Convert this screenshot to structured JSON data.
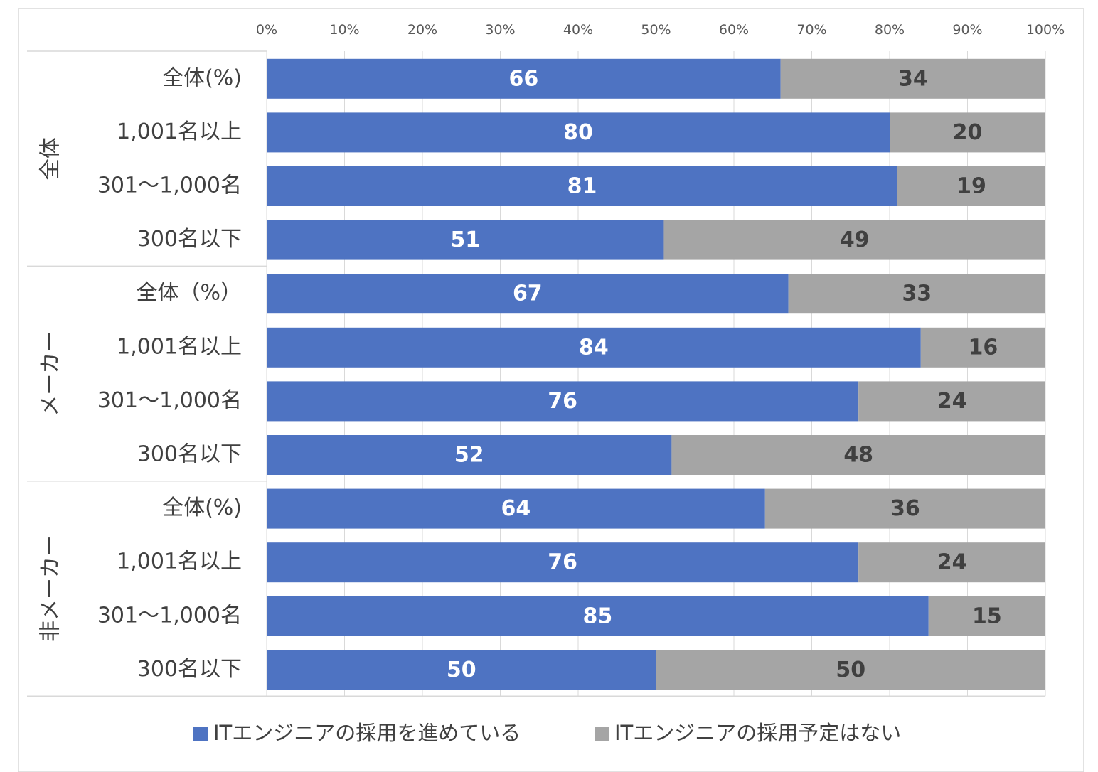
{
  "chart_data": {
    "type": "bar",
    "orientation": "horizontal",
    "stacked": true,
    "percent_stacked": true,
    "xlim": [
      0,
      100
    ],
    "x_ticks": [
      "0%",
      "10%",
      "20%",
      "30%",
      "40%",
      "50%",
      "60%",
      "70%",
      "80%",
      "90%",
      "100%"
    ],
    "grid": true,
    "legend_position": "bottom",
    "groups": [
      {
        "label": "全体",
        "categories": [
          "全体(%)",
          "1,001名以上",
          "301～1,000名",
          "300名以下"
        ]
      },
      {
        "label": "メーカー",
        "categories": [
          "全体（%）",
          "1,001名以上",
          "301～1,000名",
          "300名以下"
        ]
      },
      {
        "label": "非メーカー",
        "categories": [
          "全体(%)",
          "1,001名以上",
          "301～1,000名",
          "300名以下"
        ]
      }
    ],
    "series": [
      {
        "name": "ITエンジニアの採用を進めている",
        "color": "#4e73c2",
        "values": [
          66,
          80,
          81,
          51,
          67,
          84,
          76,
          52,
          64,
          76,
          85,
          50
        ]
      },
      {
        "name": "ITエンジニアの採用予定はない",
        "color": "#a5a5a5",
        "values": [
          34,
          20,
          19,
          49,
          33,
          16,
          24,
          48,
          36,
          24,
          15,
          50
        ]
      }
    ]
  }
}
